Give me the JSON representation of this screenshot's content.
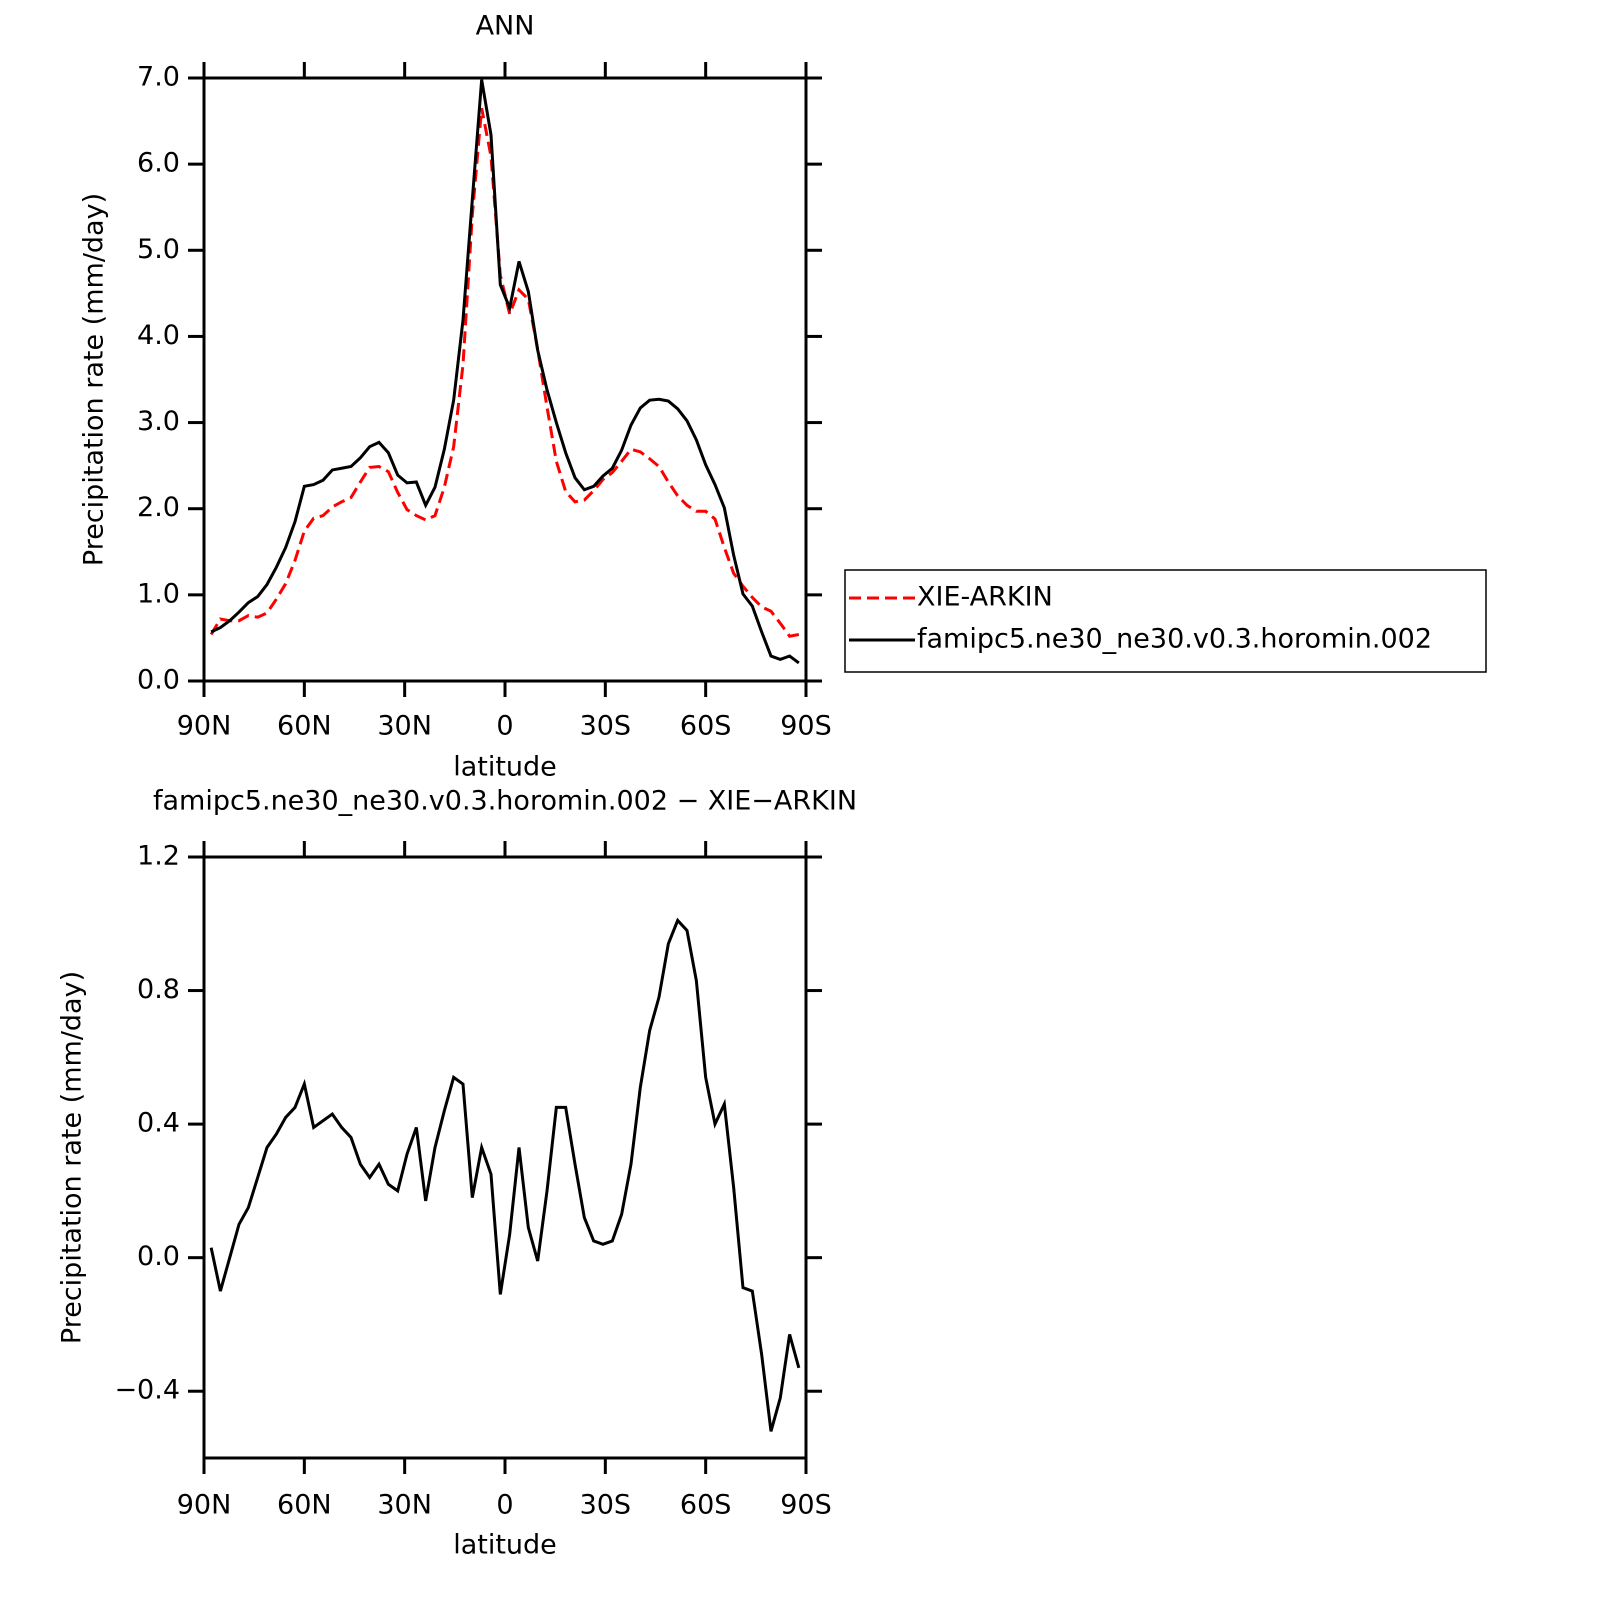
{
  "chart_data": [
    {
      "type": "line",
      "title": "ANN",
      "xlabel": "latitude",
      "ylabel": "Precipitation rate (mm/day)",
      "x": [
        87.86,
        85.1,
        82.31,
        79.53,
        76.74,
        73.95,
        71.16,
        68.37,
        65.58,
        62.79,
        60.0,
        57.21,
        54.42,
        51.63,
        48.84,
        46.04,
        43.25,
        40.46,
        37.67,
        34.88,
        32.09,
        29.3,
        26.51,
        23.72,
        20.93,
        18.14,
        15.35,
        12.56,
        9.77,
        6.98,
        4.19,
        1.4,
        -1.4,
        -4.19,
        -6.98,
        -9.77,
        -12.56,
        -15.35,
        -18.14,
        -20.93,
        -23.72,
        -26.51,
        -29.3,
        -32.09,
        -34.88,
        -37.67,
        -40.46,
        -43.25,
        -46.04,
        -48.84,
        -51.63,
        -54.42,
        -57.21,
        -60.0,
        -62.79,
        -65.58,
        -68.37,
        -71.16,
        -73.95,
        -76.74,
        -79.53,
        -82.31,
        -85.1,
        -87.86
      ],
      "series": [
        {
          "name": "XIE-ARKIN",
          "color": "#ff0000",
          "dashed": true,
          "values": [
            0.54,
            0.72,
            0.7,
            0.7,
            0.76,
            0.74,
            0.79,
            0.95,
            1.13,
            1.4,
            1.74,
            1.89,
            1.92,
            2.02,
            2.08,
            2.13,
            2.31,
            2.48,
            2.49,
            2.43,
            2.19,
            1.99,
            1.92,
            1.87,
            1.92,
            2.25,
            2.72,
            3.67,
            5.41,
            6.65,
            6.09,
            4.71,
            4.26,
            4.54,
            4.43,
            3.85,
            3.18,
            2.55,
            2.2,
            2.08,
            2.1,
            2.21,
            2.34,
            2.42,
            2.55,
            2.69,
            2.66,
            2.58,
            2.49,
            2.31,
            2.15,
            2.04,
            1.97,
            1.97,
            1.88,
            1.55,
            1.25,
            1.1,
            0.97,
            0.86,
            0.81,
            0.67,
            0.52,
            0.54
          ]
        },
        {
          "name": "famipc5.ne30_ne30.v0.3.horomin.002",
          "color": "#000000",
          "dashed": false,
          "values": [
            0.57,
            0.62,
            0.7,
            0.8,
            0.91,
            0.98,
            1.12,
            1.32,
            1.55,
            1.85,
            2.26,
            2.28,
            2.33,
            2.45,
            2.47,
            2.49,
            2.59,
            2.72,
            2.77,
            2.65,
            2.39,
            2.3,
            2.31,
            2.04,
            2.25,
            2.69,
            3.26,
            4.19,
            5.59,
            6.98,
            6.34,
            4.6,
            4.33,
            4.87,
            4.52,
            3.84,
            3.38,
            3.0,
            2.65,
            2.36,
            2.22,
            2.26,
            2.38,
            2.47,
            2.68,
            2.97,
            3.17,
            3.26,
            3.27,
            3.25,
            3.16,
            3.02,
            2.8,
            2.51,
            2.28,
            2.01,
            1.46,
            1.01,
            0.87,
            0.57,
            0.29,
            0.25,
            0.29,
            0.21
          ]
        }
      ],
      "xlim": [
        90,
        -90
      ],
      "xticks": [
        {
          "value": 90,
          "label": "90N"
        },
        {
          "value": 60,
          "label": "60N"
        },
        {
          "value": 30,
          "label": "30N"
        },
        0,
        {
          "value": -30,
          "label": "30S"
        },
        {
          "value": -60,
          "label": "60S"
        },
        {
          "value": -90,
          "label": "90S"
        }
      ],
      "ylim": [
        0,
        7
      ],
      "yticks": [
        {
          "value": 0,
          "label": "0.0"
        },
        {
          "value": 1,
          "label": "1.0"
        },
        {
          "value": 2,
          "label": "2.0"
        },
        {
          "value": 3,
          "label": "3.0"
        },
        {
          "value": 4,
          "label": "4.0"
        },
        {
          "value": 5,
          "label": "5.0"
        },
        {
          "value": 6,
          "label": "6.0"
        },
        {
          "value": 7,
          "label": "7.0"
        }
      ],
      "legend": "right"
    },
    {
      "type": "line",
      "title": "famipc5.ne30_ne30.v0.3.horomin.002 − XIE−ARKIN",
      "xlabel": "latitude",
      "ylabel": "Precipitation rate (mm/day)",
      "x": [
        87.86,
        85.1,
        82.31,
        79.53,
        76.74,
        73.95,
        71.16,
        68.37,
        65.58,
        62.79,
        60.0,
        57.21,
        54.42,
        51.63,
        48.84,
        46.04,
        43.25,
        40.46,
        37.67,
        34.88,
        32.09,
        29.3,
        26.51,
        23.72,
        20.93,
        18.14,
        15.35,
        12.56,
        9.77,
        6.98,
        4.19,
        1.4,
        -1.4,
        -4.19,
        -6.98,
        -9.77,
        -12.56,
        -15.35,
        -18.14,
        -20.93,
        -23.72,
        -26.51,
        -29.3,
        -32.09,
        -34.88,
        -37.67,
        -40.46,
        -43.25,
        -46.04,
        -48.84,
        -51.63,
        -54.42,
        -57.21,
        -60.0,
        -62.79,
        -65.58,
        -68.37,
        -71.16,
        -73.95,
        -76.74,
        -79.53,
        -82.31,
        -85.1,
        -87.86
      ],
      "series": [
        {
          "color": "#000000",
          "dashed": false,
          "values": [
            0.03,
            -0.1,
            0.0,
            0.1,
            0.15,
            0.24,
            0.33,
            0.37,
            0.42,
            0.45,
            0.52,
            0.39,
            0.41,
            0.43,
            0.39,
            0.36,
            0.28,
            0.24,
            0.28,
            0.22,
            0.2,
            0.31,
            0.39,
            0.17,
            0.33,
            0.44,
            0.54,
            0.52,
            0.18,
            0.33,
            0.25,
            -0.11,
            0.07,
            0.33,
            0.09,
            -0.01,
            0.2,
            0.45,
            0.45,
            0.28,
            0.12,
            0.05,
            0.04,
            0.05,
            0.13,
            0.28,
            0.51,
            0.68,
            0.78,
            0.94,
            1.01,
            0.98,
            0.83,
            0.54,
            0.4,
            0.46,
            0.21,
            -0.09,
            -0.1,
            -0.29,
            -0.52,
            -0.42,
            -0.23,
            -0.33
          ]
        }
      ],
      "xlim": [
        90,
        -90
      ],
      "xticks": [
        {
          "value": 90,
          "label": "90N"
        },
        {
          "value": 60,
          "label": "60N"
        },
        {
          "value": 30,
          "label": "30N"
        },
        0,
        {
          "value": -30,
          "label": "30S"
        },
        {
          "value": -60,
          "label": "60S"
        },
        {
          "value": -90,
          "label": "90S"
        }
      ],
      "ylim": [
        -0.6,
        1.2
      ],
      "yticks": [
        {
          "value": -0.4,
          "label": "−0.4"
        },
        {
          "value": 0,
          "label": "0.0"
        },
        0.4,
        0.8,
        1.2
      ]
    }
  ]
}
